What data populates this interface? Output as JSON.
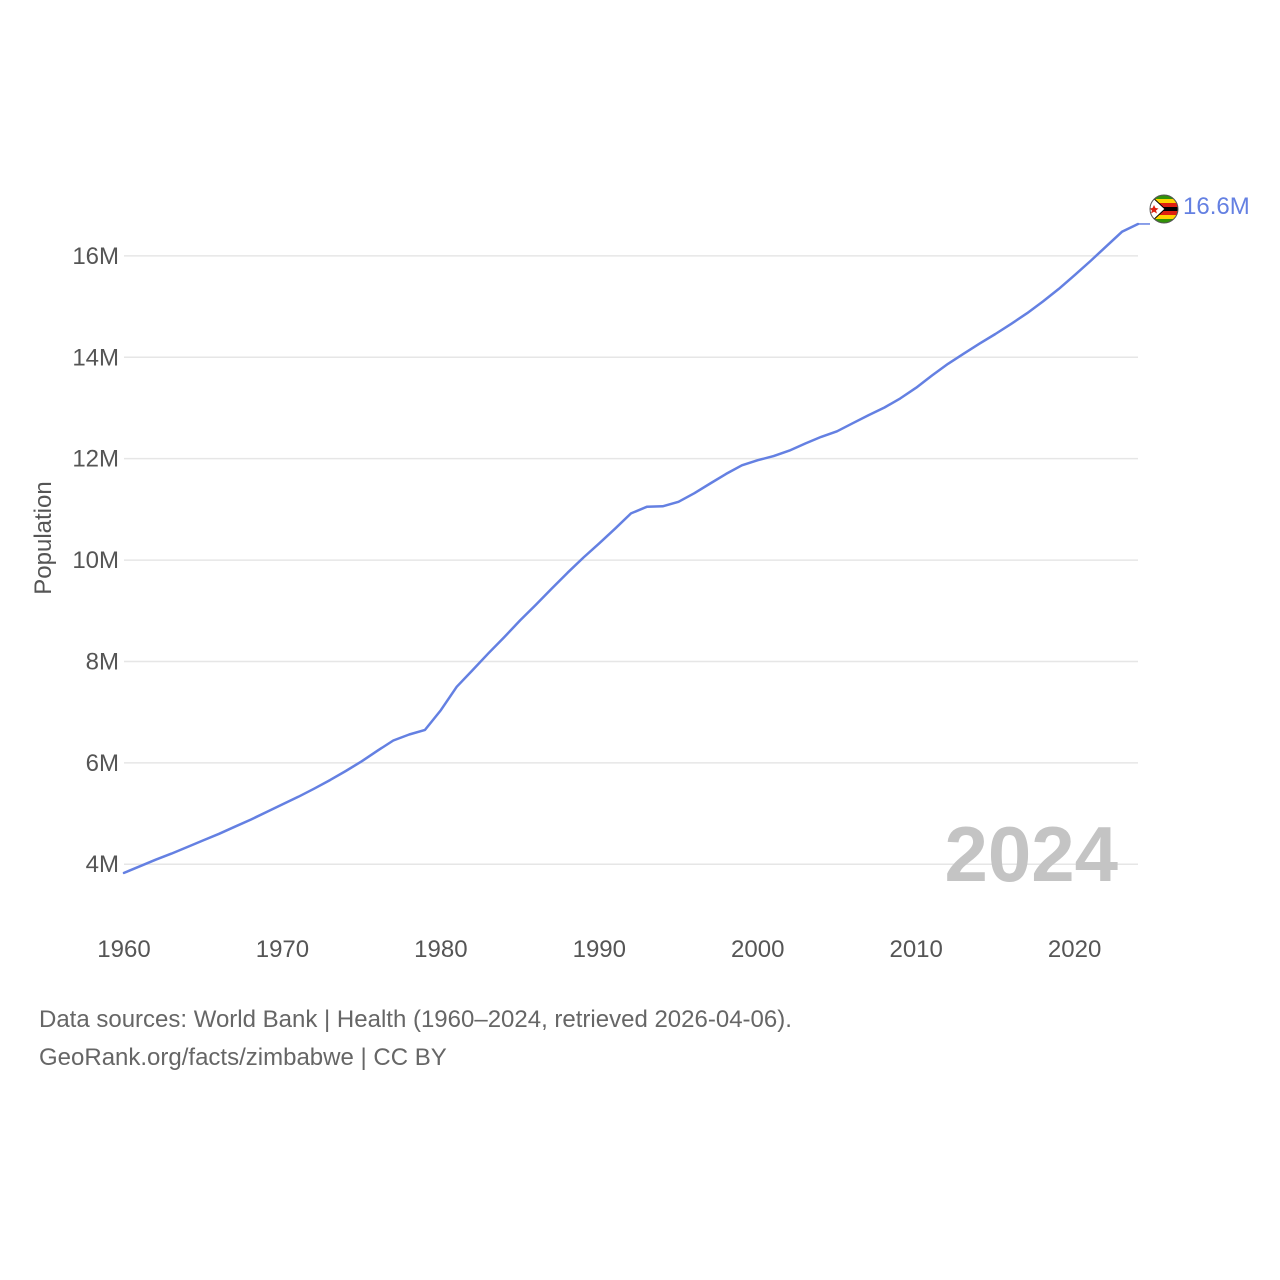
{
  "chart_data": {
    "type": "line",
    "title": "",
    "xlabel": "",
    "ylabel": "Population",
    "xlim": [
      1960,
      2024
    ],
    "ylim": [
      2900000,
      17300000
    ],
    "x_ticks": [
      1960,
      1970,
      1980,
      1990,
      2000,
      2010,
      2020
    ],
    "x_tick_labels": [
      "1960",
      "1970",
      "1980",
      "1990",
      "2000",
      "2010",
      "2020"
    ],
    "y_ticks": [
      4000000,
      6000000,
      8000000,
      10000000,
      12000000,
      14000000,
      16000000
    ],
    "y_tick_labels": [
      "4M",
      "6M",
      "8M",
      "10M",
      "12M",
      "14M",
      "16M"
    ],
    "grid": true,
    "line_color": "#6480e2",
    "year_label": "2024",
    "series": [
      {
        "name": "Zimbabwe",
        "end_label": "16.6M",
        "x": [
          1960,
          1961,
          1962,
          1963,
          1964,
          1965,
          1966,
          1967,
          1968,
          1969,
          1970,
          1971,
          1972,
          1973,
          1974,
          1975,
          1976,
          1977,
          1978,
          1979,
          1980,
          1981,
          1982,
          1983,
          1984,
          1985,
          1986,
          1987,
          1988,
          1989,
          1990,
          1991,
          1992,
          1993,
          1994,
          1995,
          1996,
          1997,
          1998,
          1999,
          2000,
          2001,
          2002,
          2003,
          2004,
          2005,
          2006,
          2007,
          2008,
          2009,
          2010,
          2011,
          2012,
          2013,
          2014,
          2015,
          2016,
          2017,
          2018,
          2019,
          2020,
          2021,
          2022,
          2023,
          2024
        ],
        "values": [
          3830000,
          3960000,
          4090000,
          4210000,
          4340000,
          4470000,
          4600000,
          4740000,
          4880000,
          5030000,
          5180000,
          5330000,
          5490000,
          5660000,
          5840000,
          6030000,
          6240000,
          6440000,
          6560000,
          6650000,
          7040000,
          7500000,
          7830000,
          8160000,
          8480000,
          8810000,
          9120000,
          9440000,
          9750000,
          10050000,
          10330000,
          10620000,
          10920000,
          11050000,
          11060000,
          11150000,
          11320000,
          11510000,
          11700000,
          11870000,
          11970000,
          12050000,
          12160000,
          12300000,
          12430000,
          12540000,
          12700000,
          12860000,
          13010000,
          13190000,
          13400000,
          13640000,
          13870000,
          14070000,
          14270000,
          14460000,
          14660000,
          14870000,
          15100000,
          15350000,
          15620000,
          15900000,
          16190000,
          16480000,
          16630000
        ]
      }
    ]
  },
  "footer": {
    "source_line_1": "Data sources: World Bank | Health (1960–2024, retrieved 2026-04-06).",
    "source_line_2": "GeoRank.org/facts/zimbabwe | CC BY"
  },
  "colors": {
    "line": "#6480e2",
    "grid": "#e6e6e6",
    "text": "#555555",
    "year": "#c4c4c4",
    "flag_green": "#319208",
    "flag_yellow": "#ffd200",
    "flag_red": "#de2010",
    "flag_black": "#000000"
  },
  "icons": {
    "end_marker": "zimbabwe-flag-icon"
  }
}
